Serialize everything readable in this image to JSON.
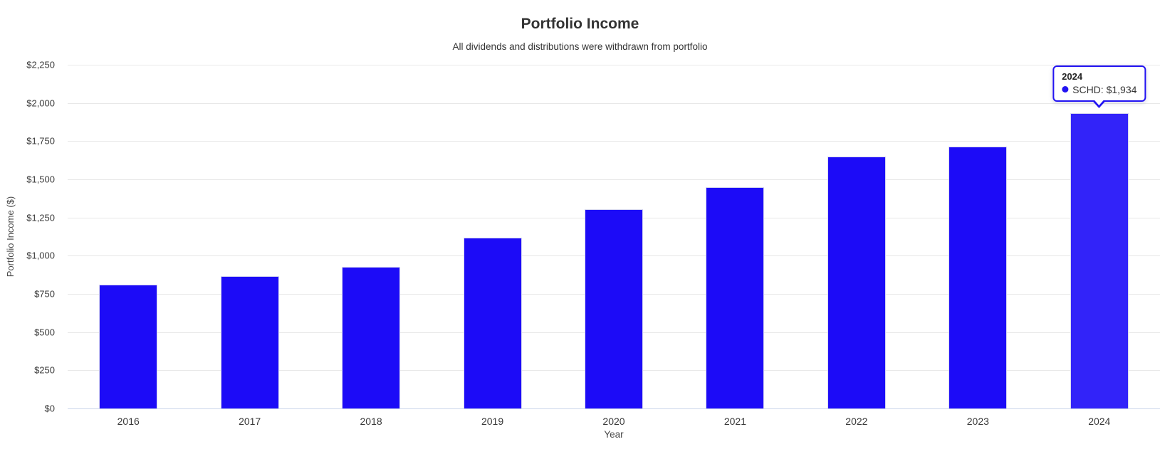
{
  "header": {
    "title": "Portfolio Income",
    "subtitle": "All dividends and distributions were withdrawn from portfolio"
  },
  "chart_data": {
    "type": "bar",
    "title": "Portfolio Income",
    "subtitle": "All dividends and distributions were withdrawn from portfolio",
    "categories": [
      "2016",
      "2017",
      "2018",
      "2019",
      "2020",
      "2021",
      "2022",
      "2023",
      "2024"
    ],
    "series": [
      {
        "name": "SCHD",
        "values": [
          812,
          868,
          926,
          1119,
          1306,
          1451,
          1649,
          1716,
          1934
        ]
      }
    ],
    "xlabel": "Year",
    "ylabel": "Portfolio Income ($)",
    "ylim": [
      0,
      2250
    ],
    "ytick_values": [
      0,
      250,
      500,
      750,
      1000,
      1250,
      1500,
      1750,
      2000,
      2250
    ],
    "ytick_labels": [
      "$0",
      "$250",
      "$500",
      "$750",
      "$1,000",
      "$1,250",
      "$1,500",
      "$1,750",
      "$2,000",
      "$2,250"
    ],
    "grid": true,
    "legend_visible": false,
    "highlighted_category": "2024"
  },
  "tooltip": {
    "year": "2024",
    "series": "SCHD",
    "value": "$1,934",
    "label": "SCHD: $1,934"
  },
  "colors": {
    "bar": "#1c0bf7",
    "bar_hover": "#3223f9",
    "tooltip_border": "#2213f2",
    "grid": "#e8e8e8",
    "axis_line": "#ccd6eb"
  }
}
